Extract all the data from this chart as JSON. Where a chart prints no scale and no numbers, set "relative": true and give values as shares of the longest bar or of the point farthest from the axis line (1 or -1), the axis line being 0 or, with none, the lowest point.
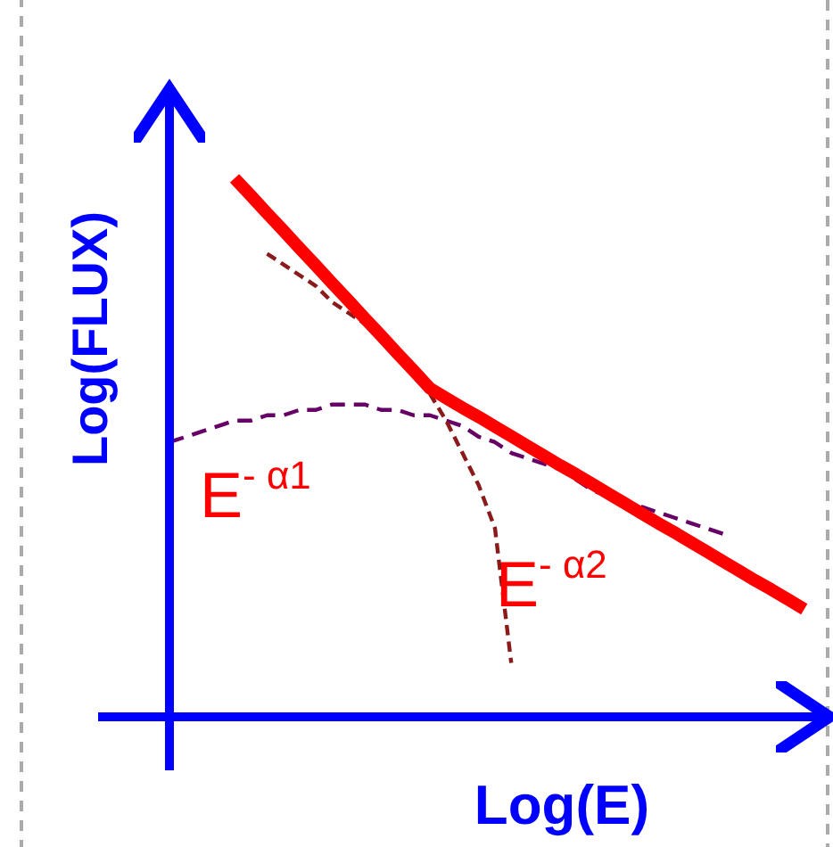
{
  "chart_data": {
    "type": "line",
    "relative": true,
    "xlabel": "Log(E)",
    "ylabel": "Log(FLUX)",
    "categories": [
      null,
      null,
      null,
      null,
      null,
      null,
      null,
      null,
      null,
      null,
      null,
      null,
      null,
      null,
      null,
      null,
      null,
      null,
      null,
      null,
      null,
      null,
      null,
      null,
      null,
      null,
      null,
      null,
      null,
      null,
      null,
      null,
      null,
      null,
      null,
      null,
      null,
      null,
      null,
      null,
      null
    ],
    "series": [
      {
        "color": "#660066",
        "line_style": "dashed",
        "values": [
          0.51,
          0.52,
          0.53,
          0.54,
          0.55,
          0.55,
          0.56,
          0.56,
          0.57,
          0.57,
          0.58,
          0.58,
          0.58,
          0.57,
          0.57,
          0.56,
          0.56,
          0.55,
          0.54,
          0.52,
          0.51,
          0.49,
          0.48,
          0.47,
          0.46,
          0.44,
          0.42,
          0.41,
          0.4,
          0.39,
          0.38,
          0.37,
          0.36,
          0.35,
          0.34,
          null,
          null,
          null,
          null,
          null,
          null
        ]
      },
      {
        "color": "#8b1a1a",
        "line_style": "dashed",
        "values": [
          null,
          null,
          null,
          null,
          null,
          null,
          0.86,
          0.84,
          0.82,
          0.8,
          0.77,
          0.75,
          0.73,
          null,
          null,
          null,
          0.6,
          0.55,
          0.49,
          0.43,
          0.35,
          0.1,
          null,
          null,
          null,
          null,
          null,
          null,
          null,
          null,
          null,
          null,
          null,
          null,
          null,
          null,
          null,
          null,
          null,
          null,
          null
        ]
      },
      {
        "color": "#ff0000",
        "line_style": "solid",
        "values": [
          null,
          null,
          null,
          null,
          1,
          0.968,
          0.935,
          0.903,
          0.87,
          0.838,
          0.805,
          0.773,
          0.74,
          0.708,
          0.675,
          0.643,
          0.61,
          0.592,
          0.574,
          0.557,
          0.539,
          0.521,
          0.503,
          0.485,
          0.467,
          0.45,
          0.432,
          0.414,
          0.396,
          0.378,
          0.36,
          0.343,
          0.325,
          0.307,
          0.289,
          0.271,
          0.253,
          0.236,
          0.218,
          0.2,
          null
        ]
      }
    ],
    "annotations": [
      "E$^{- α1}$",
      "E$^{- α2}$"
    ]
  }
}
